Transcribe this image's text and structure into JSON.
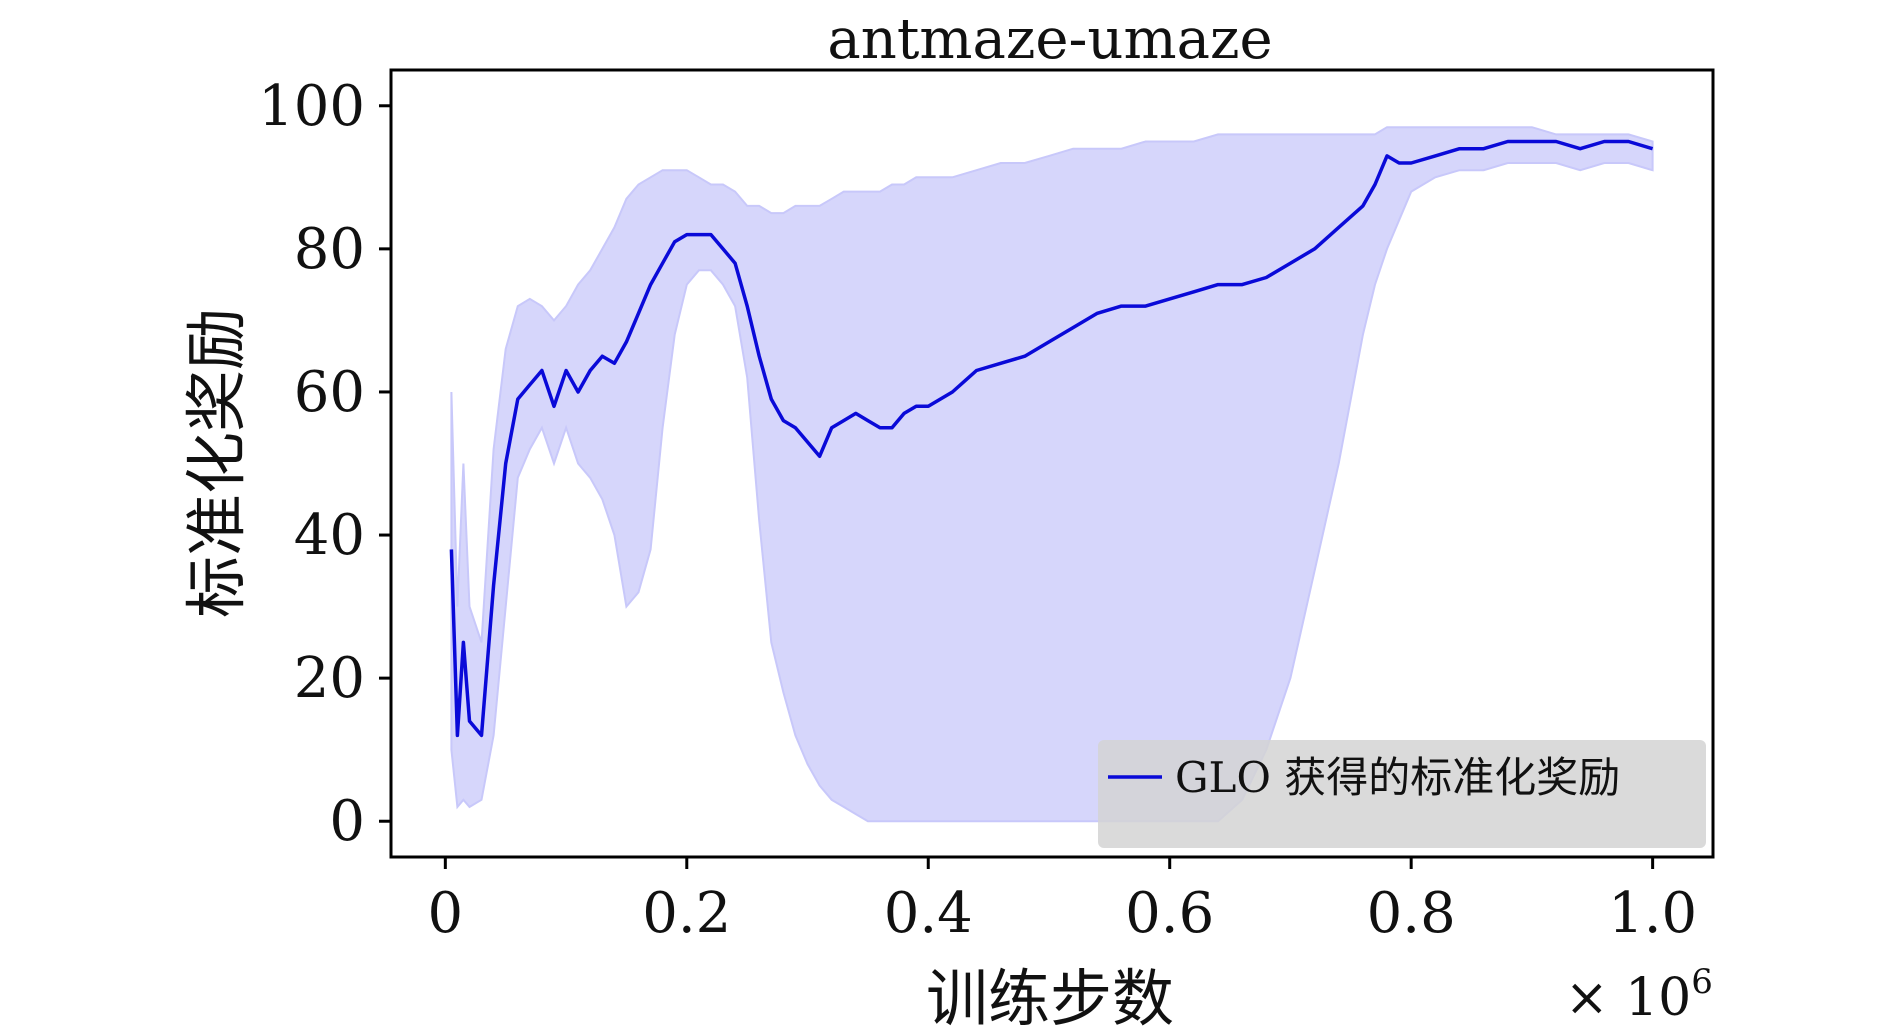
{
  "chart_data": {
    "type": "line",
    "title": "antmaze-umaze",
    "xlabel": "训练步数",
    "ylabel": "标准化奖励",
    "x_multiplier": "× 10",
    "x_multiplier_exp": "6",
    "xlim": [
      -0.045,
      1.05
    ],
    "ylim": [
      -5,
      105
    ],
    "xticks": [
      0,
      0.2,
      0.4,
      0.6,
      0.8,
      1.0
    ],
    "xtick_labels": [
      "0",
      "0.2",
      "0.4",
      "0.6",
      "0.8",
      "1.0"
    ],
    "yticks": [
      0,
      20,
      40,
      60,
      80,
      100
    ],
    "ytick_labels": [
      "0",
      "20",
      "40",
      "60",
      "80",
      "100"
    ],
    "grid": false,
    "legend_position": "bottom-right",
    "series": [
      {
        "name": "GLO 获得的标准化奖励",
        "color": "#0a0ad8",
        "band_color": "#c8c8fa",
        "x": [
          0.005,
          0.01,
          0.015,
          0.02,
          0.03,
          0.04,
          0.05,
          0.06,
          0.07,
          0.08,
          0.09,
          0.1,
          0.11,
          0.12,
          0.13,
          0.14,
          0.15,
          0.16,
          0.17,
          0.18,
          0.19,
          0.2,
          0.21,
          0.22,
          0.23,
          0.24,
          0.25,
          0.26,
          0.27,
          0.28,
          0.29,
          0.3,
          0.31,
          0.32,
          0.33,
          0.34,
          0.35,
          0.36,
          0.37,
          0.38,
          0.39,
          0.4,
          0.42,
          0.44,
          0.46,
          0.48,
          0.5,
          0.52,
          0.54,
          0.56,
          0.58,
          0.6,
          0.62,
          0.64,
          0.66,
          0.68,
          0.7,
          0.72,
          0.74,
          0.76,
          0.77,
          0.78,
          0.79,
          0.8,
          0.82,
          0.84,
          0.86,
          0.88,
          0.9,
          0.92,
          0.94,
          0.96,
          0.98,
          1.0
        ],
        "mean": [
          38,
          12,
          25,
          14,
          12,
          33,
          50,
          59,
          61,
          63,
          58,
          63,
          60,
          63,
          65,
          64,
          67,
          71,
          75,
          78,
          81,
          82,
          82,
          82,
          80,
          78,
          72,
          65,
          59,
          56,
          55,
          53,
          51,
          55,
          56,
          57,
          56,
          55,
          55,
          57,
          58,
          58,
          60,
          63,
          64,
          65,
          67,
          69,
          71,
          72,
          72,
          73,
          74,
          75,
          75,
          76,
          78,
          80,
          83,
          86,
          89,
          93,
          92,
          92,
          93,
          94,
          94,
          95,
          95,
          95,
          94,
          95,
          95,
          94
        ],
        "lower": [
          10,
          2,
          3,
          2,
          3,
          12,
          30,
          48,
          52,
          55,
          50,
          55,
          50,
          48,
          45,
          40,
          30,
          32,
          38,
          55,
          68,
          75,
          77,
          77,
          75,
          72,
          62,
          42,
          25,
          18,
          12,
          8,
          5,
          3,
          2,
          1,
          0,
          0,
          0,
          0,
          0,
          0,
          0,
          0,
          0,
          0,
          0,
          0,
          0,
          0,
          0,
          0,
          0,
          0,
          3,
          10,
          20,
          35,
          50,
          68,
          75,
          80,
          84,
          88,
          90,
          91,
          91,
          92,
          92,
          92,
          91,
          92,
          92,
          91
        ],
        "upper": [
          60,
          30,
          50,
          30,
          25,
          52,
          66,
          72,
          73,
          72,
          70,
          72,
          75,
          77,
          80,
          83,
          87,
          89,
          90,
          91,
          91,
          91,
          90,
          89,
          89,
          88,
          86,
          86,
          85,
          85,
          86,
          86,
          86,
          87,
          88,
          88,
          88,
          88,
          89,
          89,
          90,
          90,
          90,
          91,
          92,
          92,
          93,
          94,
          94,
          94,
          95,
          95,
          95,
          96,
          96,
          96,
          96,
          96,
          96,
          96,
          96,
          97,
          97,
          97,
          97,
          97,
          97,
          97,
          97,
          96,
          96,
          96,
          96,
          95
        ]
      }
    ]
  }
}
